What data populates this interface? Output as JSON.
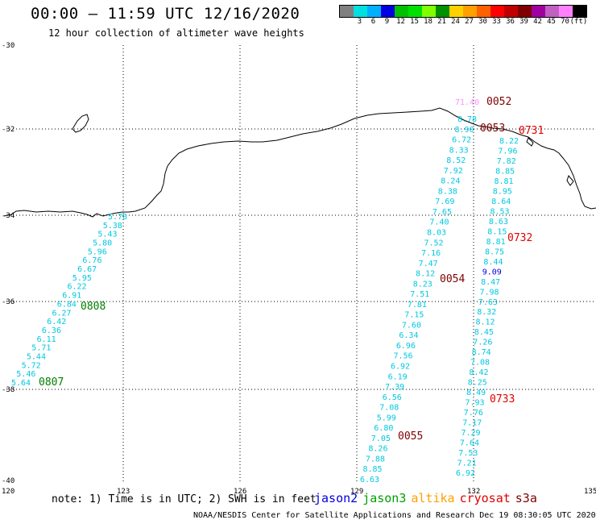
{
  "header": {
    "title": "00:00 – 11:59 UTC 12/16/2020",
    "subtitle": "12 hour collection of altimeter wave heights"
  },
  "colorbar": {
    "colors": [
      "#808080",
      "#00e0e0",
      "#00b0ff",
      "#0000e0",
      "#00c000",
      "#00e000",
      "#80ff00",
      "#009000",
      "#ffd000",
      "#ffa000",
      "#ff6000",
      "#ff0000",
      "#c00000",
      "#800000",
      "#a000a0",
      "#c060c0",
      "#ff80ff",
      "#000000"
    ],
    "labels": [
      "3",
      "6",
      "9",
      "12",
      "15",
      "18",
      "21",
      "24",
      "27",
      "30",
      "33",
      "36",
      "39",
      "42",
      "45",
      "70",
      "(ft)"
    ]
  },
  "axes": {
    "lon_labels": [
      "120",
      "123",
      "126",
      "129",
      "132",
      "135"
    ],
    "lat_labels": [
      "-30",
      "-32",
      "-34",
      "-36",
      "-38",
      "-40"
    ]
  },
  "tracks": [
    {
      "id": "west",
      "color": "#00c8e0",
      "values": [
        "5.78",
        "5.38",
        "5.43",
        "5.80",
        "5.96",
        "6.76",
        "6.67",
        "5.95",
        "6.22",
        "6.91",
        "6.84",
        "6.27",
        "6.42",
        "6.36",
        "6.11",
        "5.71",
        "5.44",
        "5.72",
        "5.46",
        "5.64"
      ]
    },
    {
      "id": "middle",
      "color": "#00c8e0",
      "values": [
        "8.78",
        "8.90",
        "6.72",
        "8.33",
        "8.52",
        "7.92",
        "8.24",
        "8.38",
        "7.69",
        "7.65",
        "7.40",
        "8.03",
        "7.52",
        "7.16",
        "7.47",
        "8.12",
        "8.23",
        "7.51",
        "7.81",
        "7.15",
        "7.60",
        "6.34",
        "6.96",
        "7.56",
        "6.92",
        "6.19",
        "7.39",
        "6.56",
        "7.08",
        "5.99",
        "6.80",
        "7.05",
        "8.26",
        "7.88",
        "8.85",
        "6.63"
      ]
    },
    {
      "id": "east",
      "color": "#00c8e0",
      "values": [
        "8.22",
        "7.96",
        "7.82",
        "8.85",
        "8.81",
        "8.95",
        "8.64",
        "8.53",
        "8.63",
        "8.15",
        "8.81",
        "8.75",
        "8.44",
        "9.09",
        "8.47",
        "7.98",
        "7.63",
        "8.32",
        "8.12",
        "8.45",
        "7.26",
        "8.74",
        "7.08",
        "8.42",
        "8.25",
        "8.49",
        "7.93",
        "7.76",
        "7.17",
        "7.29",
        "7.64",
        "7.53",
        "7.21",
        "6.92"
      ]
    }
  ],
  "special_values": [
    {
      "text": "71.40",
      "color": "#ff90ff"
    }
  ],
  "time_labels": [
    {
      "text": "0052",
      "color": "#800000"
    },
    {
      "text": "0053",
      "color": "#800000"
    },
    {
      "text": "0731",
      "color": "#e00000"
    },
    {
      "text": "0732",
      "color": "#e00000"
    },
    {
      "text": "0054",
      "color": "#800000"
    },
    {
      "text": "0808",
      "color": "#008000"
    },
    {
      "text": "0807",
      "color": "#008000"
    },
    {
      "text": "0733",
      "color": "#e00000"
    },
    {
      "text": "0055",
      "color": "#800000"
    }
  ],
  "footer": {
    "note": "note: 1) Time is in UTC; 2) SWH is in feet",
    "legend": [
      {
        "text": "jason2",
        "color": "#0000e0"
      },
      {
        "text": "jason3",
        "color": "#00a000"
      },
      {
        "text": "altika",
        "color": "#ffa000"
      },
      {
        "text": "cryosat",
        "color": "#e00000"
      },
      {
        "text": "s3a",
        "color": "#800000"
      }
    ],
    "credit": "NOAA/NESDIS Center for Satellite Applications and Research   Dec 19 08:30:05 UTC 2020"
  }
}
